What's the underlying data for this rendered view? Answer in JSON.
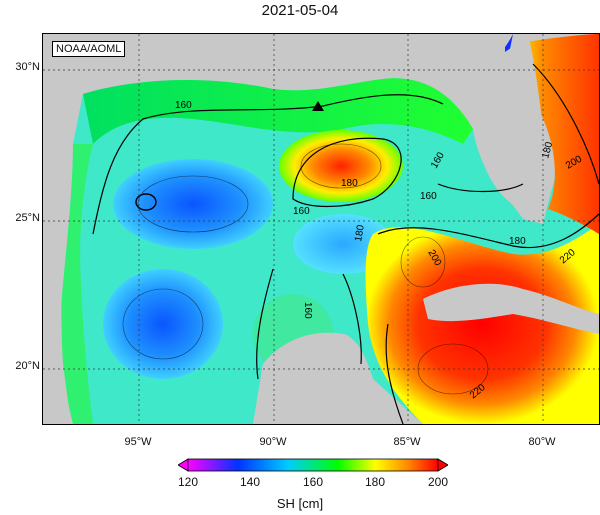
{
  "title": "2021-05-04",
  "credit": "NOAA/AOML",
  "lat_labels": [
    "30°N",
    "25°N",
    "20°N"
  ],
  "lon_labels": [
    "95°W",
    "90°W",
    "85°W",
    "80°W"
  ],
  "contour_labels": [
    "160",
    "180",
    "160",
    "160",
    "160",
    "180",
    "200",
    "160",
    "180",
    "200",
    "220",
    "220",
    "180"
  ],
  "colorbar": {
    "title": "SH [cm]",
    "ticks": [
      "120",
      "140",
      "160",
      "180",
      "200"
    ],
    "colors": [
      "#ff00ff",
      "#0033ff",
      "#00ccff",
      "#00ff00",
      "#ffff00",
      "#ff8800",
      "#ff0000"
    ]
  }
}
